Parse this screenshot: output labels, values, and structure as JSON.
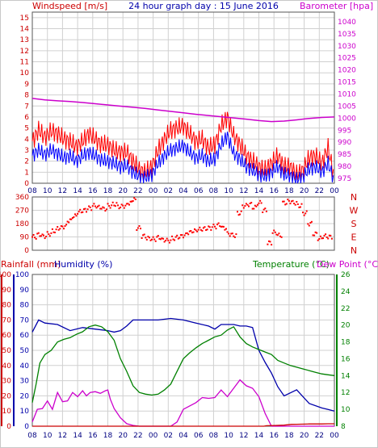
{
  "header": {
    "wind_label": "Windspeed [m/s]",
    "title": "24 hour graph day : 15 June 2016",
    "baro_label": "Barometer [hpa]"
  },
  "labels": {
    "rainfall": "Rainfall (mm)",
    "humidity": "Humidity (%)",
    "temperature": "Temperature (°C)",
    "dewpoint": "Dew Point (°C)"
  },
  "colors": {
    "wind_max": "#ff0000",
    "wind_avg": "#0000ff",
    "barometer": "#cc00cc",
    "direction": "#ff0000",
    "rain": "#cc0000",
    "humidity": "#0000aa",
    "temperature": "#008000",
    "dewpoint": "#cc00cc",
    "axis_rain": "#cc0000",
    "axis_hum": "#0000aa",
    "axis_temp": "#008000"
  },
  "chart_data": [
    {
      "type": "line",
      "title": "24 hour graph day : 15 June 2016",
      "ylabel": "Windspeed [m/s]",
      "y2label": "Barometer [hpa]",
      "x_ticks": [
        "08",
        "10",
        "12",
        "14",
        "16",
        "18",
        "20",
        "22",
        "00",
        "02",
        "04",
        "06",
        "08",
        "10",
        "12",
        "14",
        "16",
        "18",
        "20",
        "22",
        "00"
      ],
      "ylim": [
        0,
        15.5
      ],
      "y_ticks": [
        0,
        1,
        2,
        3,
        4,
        5,
        6,
        7,
        8,
        9,
        10,
        11,
        12,
        13,
        14,
        15
      ],
      "y2lim": [
        973,
        1044
      ],
      "y2_ticks": [
        975,
        980,
        985,
        990,
        995,
        1000,
        1005,
        1010,
        1015,
        1020,
        1025,
        1030,
        1035,
        1040
      ],
      "grid": true,
      "series": [
        {
          "key": "gust",
          "x": [
            0,
            0.5,
            1,
            1.5,
            2,
            2.5,
            3,
            3.5,
            4,
            4.5,
            5,
            5.5,
            6,
            6.5,
            7,
            7.5,
            8,
            8.5,
            9,
            9.5,
            10,
            10.5,
            11,
            11.5,
            12,
            12.5,
            13,
            13.5,
            14,
            14.5,
            15,
            15.5,
            16,
            16.5,
            17,
            17.5,
            18,
            18.5,
            19,
            19.5,
            20,
            20.5,
            21,
            21.5,
            22,
            22.5,
            23,
            23.5,
            24
          ],
          "values": [
            3.8,
            4.8,
            4.2,
            4.7,
            4.5,
            4.0,
            3.8,
            3.3,
            3.8,
            4.5,
            4.0,
            3.5,
            3.5,
            3.0,
            2.8,
            2.8,
            2.0,
            1.2,
            1.0,
            1.5,
            3.0,
            4.0,
            4.8,
            5.0,
            5.2,
            4.5,
            3.8,
            4.0,
            3.2,
            3.5,
            5.2,
            6.0,
            4.3,
            3.5,
            2.5,
            2.0,
            1.5,
            1.2,
            1.8,
            2.5,
            1.5,
            1.5,
            0.8,
            1.2,
            2.3,
            2.5,
            1.8,
            3.2,
            0.5
          ]
        },
        {
          "key": "avg",
          "x": [
            0,
            0.5,
            1,
            1.5,
            2,
            2.5,
            3,
            3.5,
            4,
            4.5,
            5,
            5.5,
            6,
            6.5,
            7,
            7.5,
            8,
            8.5,
            9,
            9.5,
            10,
            10.5,
            11,
            11.5,
            12,
            12.5,
            13,
            13.5,
            14,
            14.5,
            15,
            15.5,
            16,
            16.5,
            17,
            17.5,
            18,
            18.5,
            19,
            19.5,
            20,
            20.5,
            21,
            21.5,
            22,
            22.5,
            23,
            23.5,
            24
          ],
          "values": [
            2.5,
            3.0,
            2.6,
            3.0,
            2.7,
            2.3,
            2.5,
            2.0,
            2.5,
            2.8,
            2.5,
            2.1,
            2.0,
            1.8,
            1.5,
            1.6,
            1.0,
            0.6,
            0.5,
            0.8,
            1.8,
            2.5,
            3.0,
            3.2,
            3.4,
            2.8,
            2.3,
            2.5,
            2.0,
            2.2,
            3.5,
            4.3,
            2.7,
            2.2,
            1.5,
            1.2,
            0.8,
            0.6,
            1.0,
            1.5,
            0.8,
            0.7,
            0.3,
            0.6,
            1.3,
            1.5,
            1.0,
            1.8,
            0.2
          ]
        },
        {
          "key": "baro",
          "x": [
            0,
            1,
            2,
            3,
            4,
            5,
            6,
            7,
            8,
            9,
            10,
            11,
            12,
            13,
            14,
            15,
            16,
            17,
            18,
            19,
            20,
            21,
            22,
            23,
            24
          ],
          "values": [
            1008.2,
            1007.6,
            1007.2,
            1006.9,
            1006.5,
            1006.0,
            1005.5,
            1005.0,
            1004.5,
            1004.0,
            1003.4,
            1002.8,
            1002.2,
            1001.6,
            1001.1,
            1000.6,
            1000.1,
            999.6,
            999.0,
            998.6,
            998.8,
            999.3,
            999.9,
            1000.3,
            1000.5
          ]
        }
      ]
    },
    {
      "type": "scatter",
      "ylabel_right": [
        "N",
        "W",
        "S",
        "E",
        "N"
      ],
      "ylim": [
        0,
        360
      ],
      "y_ticks": [
        0,
        90,
        180,
        270,
        360
      ],
      "series": [
        {
          "key": "dir",
          "x": [
            0,
            0.4,
            0.8,
            1.2,
            1.6,
            2,
            2.4,
            2.8,
            3.2,
            3.6,
            4,
            4.4,
            4.8,
            5.2,
            5.6,
            6,
            6.4,
            6.8,
            7.2,
            7.6,
            7.9,
            8.3,
            8.7,
            9.1,
            9.5,
            9.9,
            10.3,
            10.7,
            11.1,
            11.5,
            11.9,
            12.3,
            12.7,
            13.1,
            13.5,
            13.9,
            14.3,
            14.7,
            15.1,
            15.5,
            15.9,
            16.3,
            16.7,
            17.1,
            17.5,
            17.9,
            18.3,
            18.7,
            19.1,
            19.5,
            19.9,
            20.3,
            20.7,
            21.1,
            21.5,
            21.9,
            22.3,
            22.7,
            23.1,
            23.5
          ],
          "values": [
            90,
            105,
            95,
            110,
            130,
            150,
            160,
            200,
            230,
            260,
            270,
            285,
            300,
            290,
            280,
            300,
            310,
            295,
            300,
            320,
            340,
            150,
            95,
            80,
            75,
            85,
            70,
            65,
            80,
            90,
            100,
            120,
            130,
            140,
            145,
            150,
            160,
            170,
            150,
            110,
            100,
            250,
            300,
            310,
            290,
            320,
            270,
            50,
            120,
            100,
            320,
            330,
            320,
            300,
            250,
            180,
            110,
            80,
            95,
            90
          ]
        }
      ]
    },
    {
      "type": "line",
      "ylabel": "Rainfall (mm)",
      "ylabel2": "Humidity (%)",
      "y2label": "Temperature (°C)",
      "y2label2": "Dew Point (°C)",
      "ylim": [
        0,
        100
      ],
      "y_ticks": [
        0,
        10,
        20,
        30,
        40,
        50,
        60,
        70,
        80,
        90,
        100
      ],
      "y2lim": [
        8,
        26
      ],
      "y2_ticks": [
        8,
        10,
        12,
        14,
        16,
        18,
        20,
        22,
        24,
        26
      ],
      "grid": true,
      "series": [
        {
          "key": "hum",
          "x": [
            0,
            0.5,
            1,
            2,
            3,
            4,
            5,
            6,
            6.5,
            7,
            7.5,
            8,
            9,
            10,
            11,
            12,
            13,
            14,
            14.5,
            15,
            16,
            16.5,
            17,
            17.5,
            18,
            18.5,
            19,
            19.5,
            20,
            21,
            22,
            23,
            23.5,
            24
          ],
          "values": [
            62,
            70,
            68,
            67,
            63,
            65,
            64,
            63,
            62,
            63,
            66,
            70,
            70,
            70,
            71,
            70,
            68,
            66,
            64,
            67,
            67,
            66,
            66,
            65,
            50,
            42,
            35,
            26,
            20,
            24,
            15,
            12,
            11,
            10
          ]
        },
        {
          "key": "temp",
          "x": [
            0,
            0.3,
            0.6,
            1,
            1.5,
            2,
            2.5,
            3,
            3.5,
            4,
            4.5,
            5,
            5.5,
            6,
            6.5,
            7,
            7.5,
            8,
            8.5,
            9,
            9.5,
            10,
            10.5,
            11,
            11.5,
            12,
            12.5,
            13,
            13.5,
            14,
            14.5,
            15,
            15.5,
            16,
            16.5,
            17,
            17.5,
            18,
            18.5,
            19,
            19.5,
            20,
            20.5,
            21,
            21.5,
            22,
            22.5,
            23,
            23.5,
            24
          ],
          "values": [
            10.8,
            13,
            15.5,
            16.5,
            17,
            18,
            18.3,
            18.5,
            18.9,
            19.2,
            19.8,
            20,
            19.8,
            19.2,
            18.2,
            16,
            14.5,
            12.8,
            12,
            11.8,
            11.7,
            11.8,
            12.3,
            13,
            14.5,
            16,
            16.7,
            17.3,
            17.8,
            18.2,
            18.6,
            18.8,
            19.4,
            19.8,
            18.6,
            17.8,
            17.4,
            17.1,
            16.8,
            16.5,
            15.8,
            15.5,
            15.2,
            15,
            14.8,
            14.6,
            14.4,
            14.2,
            14.1,
            14.0
          ]
        },
        {
          "key": "dew",
          "x": [
            0,
            0.4,
            0.8,
            1.2,
            1.6,
            2,
            2.4,
            2.8,
            3.2,
            3.6,
            4,
            4.3,
            4.6,
            5,
            5.4,
            5.8,
            6,
            6.2,
            6.5,
            7,
            7.5,
            8,
            8.5,
            9,
            9.5,
            10,
            10.5,
            11,
            11.5,
            12,
            12.5,
            13,
            13.5,
            14,
            14.5,
            15,
            15.5,
            16,
            16.5,
            17,
            17.5,
            18,
            18.5,
            19,
            19.5,
            20,
            20.5,
            21,
            21.5,
            22,
            22.5,
            23,
            23.5,
            24
          ],
          "values": [
            8.5,
            10,
            10.1,
            11,
            10,
            12,
            10.9,
            11,
            12,
            11.5,
            12.2,
            11.6,
            12,
            12.1,
            11.9,
            12.2,
            12.3,
            11.2,
            10.1,
            9,
            8.3,
            8.1,
            8,
            8,
            8,
            8,
            8,
            8,
            8.5,
            10,
            10.4,
            10.8,
            11.4,
            11.3,
            11.4,
            12.3,
            11.5,
            12.5,
            13.5,
            12.8,
            12.5,
            11.5,
            9.5,
            8,
            8,
            8,
            8,
            8,
            8,
            8,
            8,
            8,
            8,
            8
          ]
        },
        {
          "key": "rain",
          "x": [
            0,
            18.4,
            18.6,
            19.2,
            20,
            20.6,
            21,
            22,
            22.5,
            23,
            23.5,
            24
          ],
          "values": [
            0,
            0,
            0.3,
            0.5,
            0.7,
            1.2,
            1.3,
            1.5,
            1.5,
            1.5,
            1.6,
            1.6
          ]
        }
      ]
    }
  ]
}
